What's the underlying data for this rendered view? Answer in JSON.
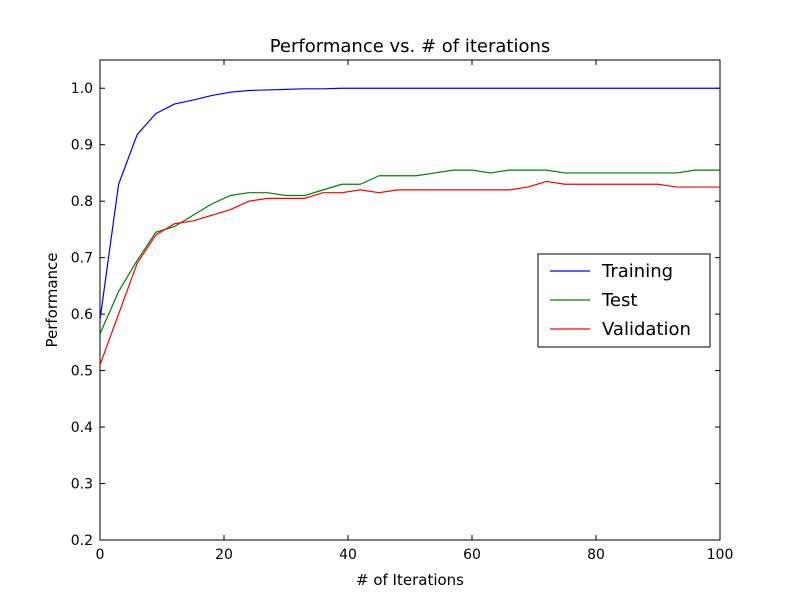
{
  "chart_data": {
    "type": "line",
    "title": "Performance vs. # of iterations",
    "xlabel": "# of Iterations",
    "ylabel": "Performance",
    "xlim": [
      0,
      100
    ],
    "ylim": [
      0.2,
      1.05
    ],
    "x_ticks": [
      0,
      20,
      40,
      60,
      80,
      100
    ],
    "y_ticks": [
      0.2,
      0.3,
      0.4,
      0.5,
      0.6,
      0.7,
      0.8,
      0.9,
      1.0
    ],
    "x_tick_labels": [
      "0",
      "20",
      "40",
      "60",
      "80",
      "100"
    ],
    "y_tick_labels": [
      "0.2",
      "0.3",
      "0.4",
      "0.5",
      "0.6",
      "0.7",
      "0.8",
      "0.9",
      "1.0"
    ],
    "grid": false,
    "legend_position": "center-right",
    "x": [
      0,
      3,
      6,
      9,
      12,
      15,
      18,
      21,
      24,
      27,
      30,
      33,
      36,
      39,
      42,
      45,
      48,
      51,
      54,
      57,
      60,
      63,
      66,
      69,
      72,
      75,
      78,
      81,
      84,
      87,
      90,
      93,
      96,
      100
    ],
    "series": [
      {
        "name": "Training",
        "color": "#0000ff",
        "values": [
          0.59,
          0.83,
          0.918,
          0.955,
          0.972,
          0.979,
          0.987,
          0.993,
          0.996,
          0.997,
          0.998,
          0.999,
          0.999,
          1.0,
          1.0,
          1.0,
          1.0,
          1.0,
          1.0,
          1.0,
          1.0,
          1.0,
          1.0,
          1.0,
          1.0,
          1.0,
          1.0,
          1.0,
          1.0,
          1.0,
          1.0,
          1.0,
          1.0,
          1.0
        ]
      },
      {
        "name": "Test",
        "color": "#008000",
        "values": [
          0.565,
          0.64,
          0.695,
          0.745,
          0.755,
          0.775,
          0.795,
          0.81,
          0.815,
          0.815,
          0.81,
          0.81,
          0.82,
          0.83,
          0.83,
          0.845,
          0.845,
          0.845,
          0.85,
          0.855,
          0.855,
          0.85,
          0.855,
          0.855,
          0.855,
          0.85,
          0.85,
          0.85,
          0.85,
          0.85,
          0.85,
          0.85,
          0.855,
          0.855
        ]
      },
      {
        "name": "Validation",
        "color": "#ff0000",
        "values": [
          0.51,
          0.6,
          0.69,
          0.74,
          0.76,
          0.765,
          0.775,
          0.785,
          0.8,
          0.805,
          0.805,
          0.805,
          0.815,
          0.815,
          0.82,
          0.815,
          0.82,
          0.82,
          0.82,
          0.82,
          0.82,
          0.82,
          0.82,
          0.825,
          0.835,
          0.83,
          0.83,
          0.83,
          0.83,
          0.83,
          0.83,
          0.825,
          0.825,
          0.825
        ]
      }
    ]
  }
}
